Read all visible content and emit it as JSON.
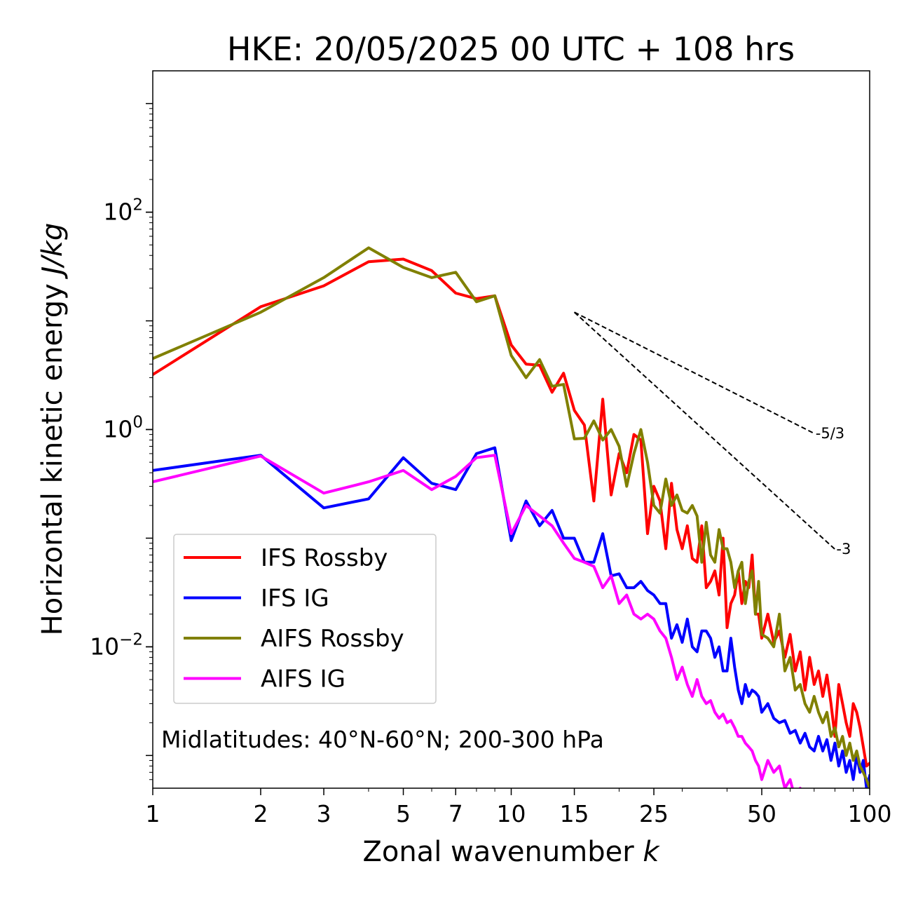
{
  "chart_data": {
    "type": "line",
    "title": "HKE: 20/05/2025 00 UTC + 108 hrs",
    "xlabel": "Zonal wavenumber",
    "xlabel_var": "k",
    "ylabel": "Horizontal kinetic energy",
    "ylabel_unit": "J/kg",
    "xscale": "log",
    "yscale": "log",
    "xlim": [
      1,
      100
    ],
    "ylim": [
      0.0005,
      2000
    ],
    "grid": false,
    "legend_position": "center-left",
    "x_ticks": [
      {
        "value": 1,
        "label": "1"
      },
      {
        "value": 2,
        "label": "2"
      },
      {
        "value": 3,
        "label": "3"
      },
      {
        "value": 5,
        "label": "5"
      },
      {
        "value": 7,
        "label": "7"
      },
      {
        "value": 10,
        "label": "10"
      },
      {
        "value": 15,
        "label": "15"
      },
      {
        "value": 25,
        "label": "25"
      },
      {
        "value": 50,
        "label": "50"
      },
      {
        "value": 100,
        "label": "100"
      }
    ],
    "y_ticks": [
      {
        "value": 100,
        "base": "10",
        "exp": "2"
      },
      {
        "value": 1,
        "base": "10",
        "exp": "0"
      },
      {
        "value": 0.01,
        "base": "10",
        "exp": "−2"
      }
    ],
    "annotation": "Midlatitudes: 40°N-60°N; 200-300 hPa",
    "reference_lines": [
      {
        "label": "-5/3",
        "slope": -1.6667,
        "x": [
          15,
          70
        ],
        "y0": 12
      },
      {
        "label": "-3",
        "slope": -3,
        "x": [
          15,
          80
        ],
        "y0": 12
      }
    ],
    "series": [
      {
        "name": "IFS Rossby",
        "color": "#ff0000",
        "x": [
          1,
          2,
          3,
          4,
          5,
          6,
          7,
          8,
          9,
          10,
          11,
          12,
          13,
          14,
          15,
          16,
          17,
          18,
          19,
          20,
          21,
          22,
          23,
          24,
          25,
          26,
          27,
          28,
          29,
          30,
          31,
          32,
          33,
          34,
          35,
          36,
          37,
          38,
          39,
          40,
          41,
          42,
          43,
          44,
          45,
          46,
          47,
          48,
          49,
          50,
          52,
          54,
          56,
          58,
          60,
          62,
          64,
          66,
          68,
          70,
          72,
          74,
          76,
          78,
          80,
          82,
          84,
          86,
          88,
          90,
          92,
          94,
          96,
          98,
          100
        ],
        "y": [
          3.2,
          13.5,
          21,
          35,
          37,
          29,
          18,
          16,
          17,
          6.0,
          4.0,
          3.9,
          2.2,
          3.3,
          1.5,
          1.1,
          0.22,
          1.9,
          0.25,
          0.6,
          0.4,
          0.9,
          0.8,
          0.11,
          0.3,
          0.22,
          0.08,
          0.32,
          0.12,
          0.08,
          0.13,
          0.065,
          0.06,
          0.13,
          0.035,
          0.04,
          0.05,
          0.03,
          0.1,
          0.015,
          0.025,
          0.03,
          0.05,
          0.025,
          0.04,
          0.035,
          0.07,
          0.02,
          0.02,
          0.012,
          0.02,
          0.011,
          0.014,
          0.008,
          0.013,
          0.006,
          0.009,
          0.004,
          0.008,
          0.0045,
          0.006,
          0.0035,
          0.0055,
          0.003,
          0.0015,
          0.0045,
          0.003,
          0.002,
          0.0015,
          0.003,
          0.0025,
          0.0018,
          0.0012,
          0.0008,
          0.00085
        ]
      },
      {
        "name": "IFS IG",
        "color": "#0000ff",
        "x": [
          1,
          2,
          3,
          4,
          5,
          6,
          7,
          8,
          9,
          10,
          11,
          12,
          13,
          14,
          15,
          16,
          17,
          18,
          19,
          20,
          21,
          22,
          23,
          24,
          25,
          26,
          27,
          28,
          29,
          30,
          31,
          32,
          33,
          34,
          35,
          36,
          37,
          38,
          39,
          40,
          41,
          42,
          43,
          44,
          45,
          46,
          47,
          48,
          49,
          50,
          52,
          54,
          56,
          58,
          60,
          62,
          64,
          66,
          68,
          70,
          72,
          74,
          76,
          78,
          80,
          82,
          84,
          86,
          88,
          90,
          92,
          94,
          96,
          98,
          100
        ],
        "y": [
          0.42,
          0.58,
          0.19,
          0.23,
          0.55,
          0.32,
          0.28,
          0.6,
          0.68,
          0.095,
          0.22,
          0.13,
          0.18,
          0.1,
          0.1,
          0.06,
          0.06,
          0.11,
          0.045,
          0.047,
          0.035,
          0.035,
          0.04,
          0.033,
          0.03,
          0.025,
          0.025,
          0.012,
          0.016,
          0.011,
          0.018,
          0.01,
          0.009,
          0.014,
          0.014,
          0.012,
          0.008,
          0.01,
          0.006,
          0.006,
          0.012,
          0.0065,
          0.004,
          0.003,
          0.0045,
          0.0035,
          0.004,
          0.0038,
          0.0035,
          0.0025,
          0.003,
          0.0022,
          0.002,
          0.0021,
          0.0016,
          0.0017,
          0.0013,
          0.0016,
          0.0012,
          0.0011,
          0.0015,
          0.0011,
          0.0014,
          0.0009,
          0.0013,
          0.0008,
          0.0011,
          0.0007,
          0.0009,
          0.0006,
          0.001,
          0.0007,
          0.0009,
          0.0005,
          0.00065
        ]
      },
      {
        "name": "AIFS Rossby",
        "color": "#808000",
        "x": [
          1,
          2,
          3,
          4,
          5,
          6,
          7,
          8,
          9,
          10,
          11,
          12,
          13,
          14,
          15,
          16,
          17,
          18,
          19,
          20,
          21,
          22,
          23,
          24,
          25,
          26,
          27,
          28,
          29,
          30,
          31,
          32,
          33,
          34,
          35,
          36,
          37,
          38,
          39,
          40,
          41,
          42,
          43,
          44,
          45,
          46,
          47,
          48,
          49,
          50,
          52,
          54,
          56,
          58,
          60,
          62,
          64,
          66,
          68,
          70,
          72,
          74,
          76,
          78,
          80,
          82,
          84,
          86,
          88,
          90,
          92,
          94,
          96,
          98,
          100
        ],
        "y": [
          4.5,
          12,
          25,
          47,
          31,
          25,
          28,
          15,
          17,
          4.8,
          3.0,
          4.4,
          2.5,
          2.6,
          0.82,
          0.83,
          1.2,
          0.8,
          1.0,
          0.7,
          0.3,
          0.6,
          1.0,
          0.5,
          0.2,
          0.17,
          0.35,
          0.2,
          0.25,
          0.18,
          0.17,
          0.2,
          0.16,
          0.06,
          0.14,
          0.07,
          0.06,
          0.12,
          0.08,
          0.08,
          0.06,
          0.035,
          0.05,
          0.06,
          0.025,
          0.04,
          0.05,
          0.02,
          0.04,
          0.013,
          0.012,
          0.01,
          0.02,
          0.006,
          0.008,
          0.004,
          0.0045,
          0.003,
          0.0025,
          0.0035,
          0.0025,
          0.002,
          0.0025,
          0.0015,
          0.0018,
          0.0012,
          0.0015,
          0.001,
          0.0013,
          0.0009,
          0.0011,
          0.0008,
          0.0007,
          0.0006,
          0.0005
        ]
      },
      {
        "name": "AIFS IG",
        "color": "#ff00ff",
        "x": [
          1,
          2,
          3,
          4,
          5,
          6,
          7,
          8,
          9,
          10,
          11,
          12,
          13,
          14,
          15,
          16,
          17,
          18,
          19,
          20,
          21,
          22,
          23,
          24,
          25,
          26,
          27,
          28,
          29,
          30,
          31,
          32,
          33,
          34,
          35,
          36,
          37,
          38,
          39,
          40,
          41,
          42,
          43,
          44,
          45,
          46,
          47,
          48,
          49,
          50,
          52,
          54,
          56,
          58,
          60,
          62,
          64,
          66,
          68,
          70,
          72,
          74,
          76
        ],
        "y": [
          0.33,
          0.57,
          0.26,
          0.33,
          0.42,
          0.28,
          0.37,
          0.55,
          0.58,
          0.11,
          0.2,
          0.16,
          0.13,
          0.09,
          0.065,
          0.06,
          0.055,
          0.035,
          0.045,
          0.025,
          0.03,
          0.02,
          0.018,
          0.02,
          0.018,
          0.014,
          0.012,
          0.008,
          0.005,
          0.0065,
          0.0045,
          0.0035,
          0.005,
          0.0035,
          0.003,
          0.0032,
          0.0025,
          0.0022,
          0.0024,
          0.002,
          0.0021,
          0.0018,
          0.0015,
          0.0015,
          0.0013,
          0.0012,
          0.0011,
          0.0009,
          0.0008,
          0.0006,
          0.0009,
          0.0007,
          0.0008,
          0.0005,
          0.0006,
          0.0004,
          0.0005,
          0.0004,
          0.00045,
          0.0003,
          0.0004,
          0.0003,
          0.00035
        ]
      }
    ]
  }
}
